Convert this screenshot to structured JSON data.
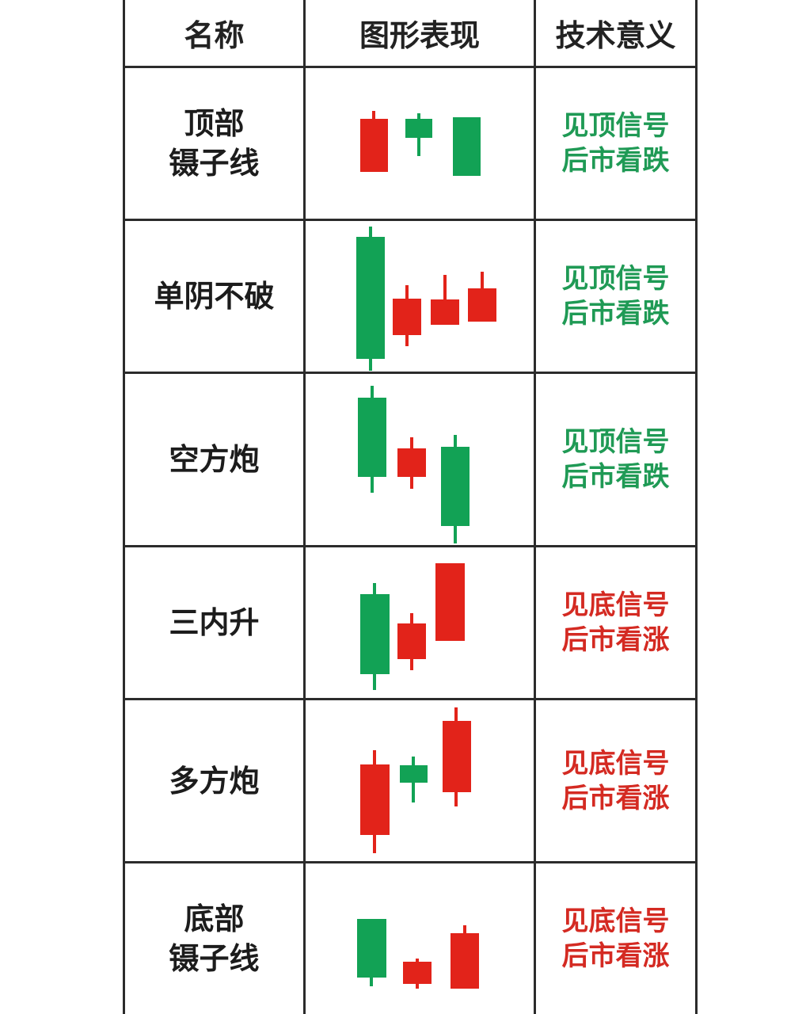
{
  "colors": {
    "red": "#e2231a",
    "green": "#12a255",
    "line": "#2b2b2b",
    "meaning_green": "#1f9a55",
    "meaning_red": "#d42a22"
  },
  "header": {
    "name": "名称",
    "pattern": "图形表现",
    "meaning": "技术意义"
  },
  "rows": [
    {
      "name": [
        "顶部",
        "镊子线"
      ],
      "meaning": [
        "见顶信号",
        "后市看跌"
      ],
      "meaning_color": "green",
      "candles": [
        {
          "color": "red",
          "body": [
            0.25,
            0.7
          ]
        },
        {
          "color": "green",
          "body": [
            0.3,
            0.45
          ]
        },
        {
          "color": "green",
          "body": [
            0.3,
            0.72
          ]
        }
      ]
    },
    {
      "name": [
        "单阴不破"
      ],
      "meaning": [
        "见顶信号",
        "后市看跌"
      ],
      "meaning_color": "green",
      "candles": [
        {
          "color": "green"
        },
        {
          "color": "red"
        },
        {
          "color": "red"
        },
        {
          "color": "red"
        }
      ]
    },
    {
      "name": [
        "空方炮"
      ],
      "meaning": [
        "见顶信号",
        "后市看跌"
      ],
      "meaning_color": "green",
      "candles": [
        {
          "color": "green"
        },
        {
          "color": "red"
        },
        {
          "color": "green"
        }
      ]
    },
    {
      "name": [
        "三内升"
      ],
      "meaning": [
        "见底信号",
        "后市看涨"
      ],
      "meaning_color": "red",
      "candles": [
        {
          "color": "green"
        },
        {
          "color": "red"
        },
        {
          "color": "red"
        }
      ]
    },
    {
      "name": [
        "多方炮"
      ],
      "meaning": [
        "见底信号",
        "后市看涨"
      ],
      "meaning_color": "red",
      "candles": [
        {
          "color": "red"
        },
        {
          "color": "green"
        },
        {
          "color": "red"
        }
      ]
    },
    {
      "name": [
        "底部",
        "镊子线"
      ],
      "meaning": [
        "见底信号",
        "后市看涨"
      ],
      "meaning_color": "red",
      "candles": [
        {
          "color": "green"
        },
        {
          "color": "red"
        },
        {
          "color": "red"
        }
      ]
    }
  ]
}
